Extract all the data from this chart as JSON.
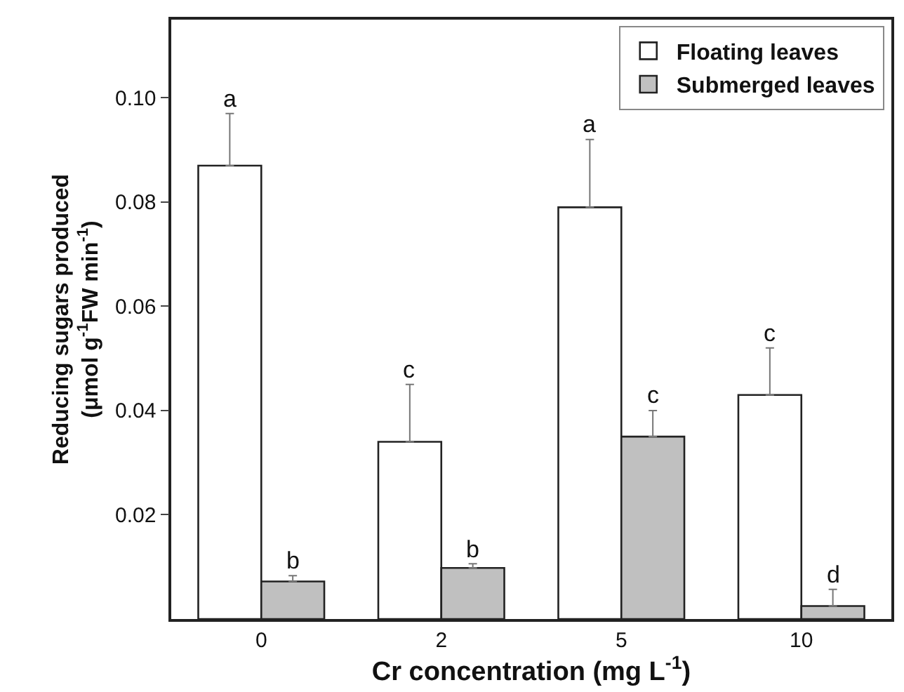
{
  "chart_data": {
    "type": "bar",
    "xlabel": "Cr concentration (mg L$^{-1}$)",
    "ylabel": "Reducing sugars produced\n(μmol g$^{-1}$FW min$^{-1}$)",
    "categories": [
      "0",
      "2",
      "5",
      "10"
    ],
    "series": [
      {
        "name": "Floating leaves",
        "color": "#ffffff",
        "values": [
          0.087,
          0.034,
          0.079,
          0.043
        ],
        "errors": [
          [
            0.087,
            0.097
          ],
          [
            0.034,
            0.045
          ],
          [
            0.079,
            0.092
          ],
          [
            0.043,
            0.052
          ]
        ]
      },
      {
        "name": "Submerged leaves",
        "color": "#c0c0c0",
        "values": [
          0.0072,
          0.0098,
          0.035,
          0.0025
        ],
        "errors": [
          [
            0.0072,
            0.0083
          ],
          [
            0.0098,
            0.0106
          ],
          [
            0.035,
            0.04
          ],
          [
            0.0025,
            0.0057
          ]
        ]
      }
    ],
    "ylim": [
      0,
      0.115
    ],
    "yticks": [
      {
        "value": 0.02,
        "label": "0.02"
      },
      {
        "value": 0.04,
        "label": "0.04"
      },
      {
        "value": 0.06,
        "label": "0.06"
      },
      {
        "value": 0.08,
        "label": "0.08"
      },
      {
        "value": 0.1,
        "label": "0.10"
      }
    ],
    "grid": false,
    "legend": "top right",
    "annotations": [
      "a",
      "b",
      "c",
      "b",
      "a",
      "c",
      "c",
      "d"
    ]
  }
}
